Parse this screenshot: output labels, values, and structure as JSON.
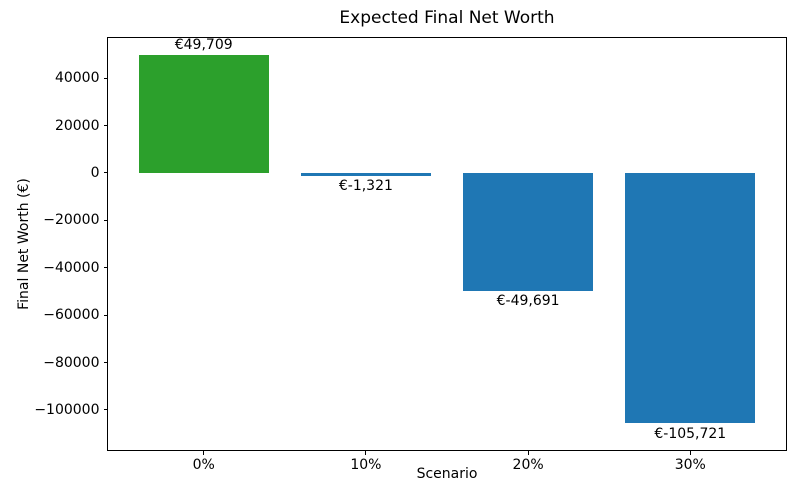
{
  "chart_data": {
    "type": "bar",
    "title": "Expected Final Net Worth",
    "xlabel": "Scenario",
    "ylabel": "Final Net Worth (€)",
    "categories": [
      "0%",
      "10%",
      "20%",
      "30%"
    ],
    "values": [
      49709,
      -1321,
      -49691,
      -105721
    ],
    "bar_labels": [
      "€49,709",
      "€-1,321",
      "€-49,691",
      "€-105,721"
    ],
    "bar_colors": [
      "#2ca02c",
      "#1f77b4",
      "#1f77b4",
      "#1f77b4"
    ],
    "positive_color": "#2ca02c",
    "negative_color": "#1f77b4",
    "yticks": [
      40000,
      20000,
      0,
      -20000,
      -40000,
      -60000,
      -80000,
      -100000
    ],
    "ylim": [
      -116900,
      56950
    ],
    "xlim": [
      -0.59,
      3.59
    ],
    "bar_width_fraction": 0.8,
    "grid": false,
    "legend_position": "none"
  }
}
